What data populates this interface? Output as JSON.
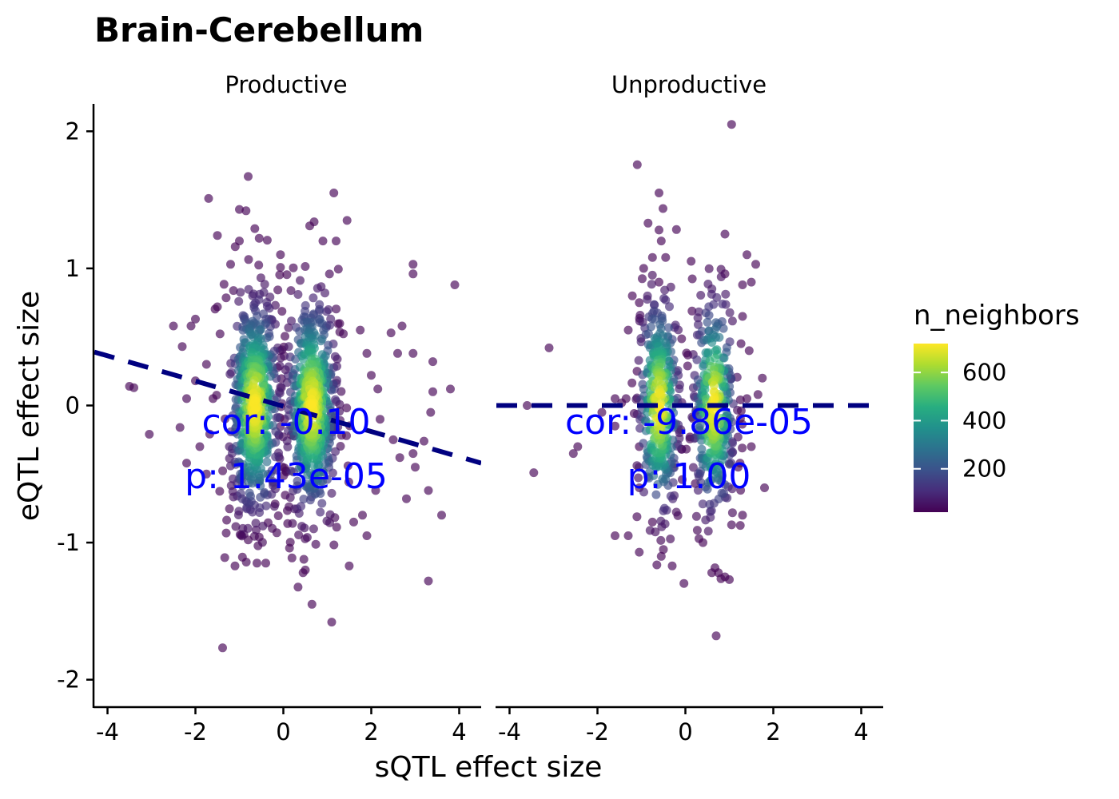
{
  "title": "Brain-Cerebellum",
  "xlabel": "sQTL effect size",
  "ylabel": "eQTL effect size",
  "legend": {
    "title": "n_neighbors",
    "ticks": [
      600,
      400,
      200
    ],
    "range": [
      20,
      720
    ]
  },
  "chart_data": {
    "type": "scatter",
    "title": "Brain-Cerebellum",
    "xlabel": "sQTL effect size",
    "ylabel": "eQTL effect size",
    "xlim": [
      -4.3,
      4.5
    ],
    "ylim": [
      -2.2,
      2.2
    ],
    "xticks": [
      -4,
      -2,
      0,
      2,
      4
    ],
    "yticks": [
      2,
      1,
      0,
      -1,
      -2
    ],
    "color_scale": "viridis",
    "grid": false,
    "legend_position": "right",
    "panels": [
      {
        "name": "Productive",
        "annotation": {
          "cor": "cor: -0.10",
          "p": "p: 1.43e-05"
        },
        "fit_line": {
          "x": [
            -4.3,
            4.5
          ],
          "y": [
            0.39,
            -0.42
          ]
        },
        "clusters": [
          {
            "cx": -0.65,
            "sx": 0.3,
            "sy": 0.38,
            "n": 560
          },
          {
            "cx": 0.65,
            "sx": 0.3,
            "sy": 0.38,
            "n": 560
          }
        ],
        "outliers": [
          [
            -0.8,
            1.67
          ],
          [
            -1.7,
            1.51
          ],
          [
            1.15,
            1.55
          ],
          [
            -1.5,
            1.24
          ],
          [
            -1.0,
            1.43
          ],
          [
            -0.85,
            1.42
          ],
          [
            -0.55,
            1.22
          ],
          [
            -1.0,
            1.2
          ],
          [
            -0.65,
            1.29
          ],
          [
            -1.2,
            1.03
          ],
          [
            0.7,
            1.34
          ],
          [
            0.6,
            1.31
          ],
          [
            1.45,
            1.35
          ],
          [
            0.9,
            1.2
          ],
          [
            1.2,
            1.2
          ],
          [
            2.95,
            1.03
          ],
          [
            2.95,
            0.96
          ],
          [
            3.9,
            0.88
          ],
          [
            -2.5,
            0.58
          ],
          [
            -2.1,
            0.58
          ],
          [
            -2.0,
            0.63
          ],
          [
            -2.3,
            0.43
          ],
          [
            -2.0,
            0.18
          ],
          [
            -2.2,
            0.05
          ],
          [
            -3.5,
            0.14
          ],
          [
            -3.4,
            0.13
          ],
          [
            -3.05,
            -0.21
          ],
          [
            -2.35,
            -0.16
          ],
          [
            -2.2,
            -0.42
          ],
          [
            2.45,
            0.53
          ],
          [
            2.7,
            0.58
          ],
          [
            2.6,
            0.38
          ],
          [
            2.95,
            0.38
          ],
          [
            3.4,
            0.32
          ],
          [
            3.4,
            0.1
          ],
          [
            3.8,
            0.12
          ],
          [
            3.35,
            -0.05
          ],
          [
            2.5,
            -0.25
          ],
          [
            2.65,
            -0.38
          ],
          [
            2.95,
            -0.35
          ],
          [
            3.2,
            -0.26
          ],
          [
            3.0,
            -0.45
          ],
          [
            3.3,
            -0.62
          ],
          [
            3.6,
            -0.8
          ],
          [
            2.8,
            -0.68
          ],
          [
            3.3,
            -1.28
          ],
          [
            1.1,
            -1.58
          ],
          [
            0.65,
            -1.45
          ],
          [
            0.5,
            -1.2
          ],
          [
            0.45,
            -1.22
          ],
          [
            -0.55,
            -0.96
          ],
          [
            -0.6,
            -1.15
          ],
          [
            -1.1,
            -1.17
          ],
          [
            -0.4,
            -1.15
          ],
          [
            -0.8,
            -0.98
          ],
          [
            -1.3,
            -0.93
          ],
          [
            1.8,
            -0.8
          ],
          [
            1.9,
            -0.95
          ],
          [
            2.1,
            -0.62
          ],
          [
            1.6,
            -0.85
          ],
          [
            2.15,
            0.12
          ],
          [
            2.0,
            0.22
          ],
          [
            2.2,
            -0.1
          ],
          [
            1.9,
            0.38
          ],
          [
            1.75,
            0.55
          ],
          [
            -1.75,
            0.3
          ],
          [
            -1.6,
            0.05
          ],
          [
            -1.9,
            -0.3
          ],
          [
            -1.75,
            -0.5
          ],
          [
            -1.5,
            0.72
          ]
        ]
      },
      {
        "name": "Unproductive",
        "annotation": {
          "cor": "cor: -9.86e-05",
          "p": "p: 1.00"
        },
        "fit_line": {
          "x": [
            -4.3,
            4.5
          ],
          "y": [
            0.0,
            0.0
          ]
        },
        "clusters": [
          {
            "cx": -0.6,
            "sx": 0.25,
            "sy": 0.38,
            "n": 340
          },
          {
            "cx": 0.65,
            "sx": 0.25,
            "sy": 0.38,
            "n": 340
          }
        ],
        "outliers": [
          [
            1.05,
            2.05
          ],
          [
            -0.6,
            1.55
          ],
          [
            -0.85,
            1.33
          ],
          [
            -0.6,
            1.28
          ],
          [
            -0.55,
            1.2
          ],
          [
            0.9,
            1.25
          ],
          [
            1.4,
            1.1
          ],
          [
            1.6,
            1.03
          ],
          [
            0.9,
            0.96
          ],
          [
            1.3,
            0.88
          ],
          [
            1.5,
            0.9
          ],
          [
            -0.75,
            1.08
          ],
          [
            -0.45,
            1.08
          ],
          [
            -0.95,
            1.0
          ],
          [
            -0.6,
            0.9
          ],
          [
            -1.05,
            0.75
          ],
          [
            -3.1,
            0.42
          ],
          [
            -3.6,
            0.0
          ],
          [
            -3.45,
            -0.49
          ],
          [
            -2.55,
            -0.35
          ],
          [
            -2.45,
            -0.3
          ],
          [
            -1.6,
            -0.15
          ],
          [
            -1.45,
            0.02
          ],
          [
            -1.6,
            0.05
          ],
          [
            -1.35,
            0.05
          ],
          [
            -1.9,
            -0.05
          ],
          [
            -1.6,
            -0.95
          ],
          [
            -1.3,
            -0.95
          ],
          [
            -1.05,
            -1.07
          ],
          [
            -0.55,
            -1.1
          ],
          [
            -0.3,
            -1.17
          ],
          [
            -0.5,
            -1.05
          ],
          [
            -0.75,
            -0.85
          ],
          [
            0.6,
            -1.22
          ],
          [
            0.75,
            -1.22
          ],
          [
            0.9,
            -1.25
          ],
          [
            1.0,
            -1.27
          ],
          [
            0.7,
            -1.68
          ],
          [
            0.4,
            -1.0
          ],
          [
            1.3,
            -0.8
          ],
          [
            1.8,
            -0.6
          ],
          [
            1.75,
            0.2
          ],
          [
            1.4,
            0.05
          ],
          [
            1.5,
            -0.3
          ],
          [
            1.45,
            0.4
          ],
          [
            1.3,
            0.65
          ],
          [
            1.65,
            0.08
          ],
          [
            -1.3,
            0.55
          ],
          [
            -1.1,
            0.25
          ],
          [
            -1.05,
            -0.3
          ],
          [
            -1.05,
            -0.6
          ],
          [
            1.2,
            -0.45
          ]
        ]
      }
    ]
  }
}
